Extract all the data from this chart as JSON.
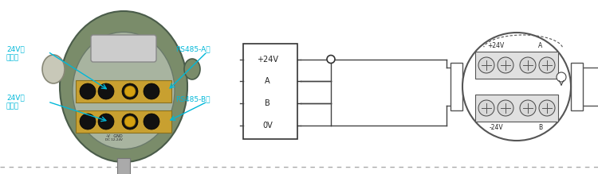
{
  "bg_color": "#ffffff",
  "cyan_color": "#00B8D9",
  "dark": "#333333",
  "gray": "#888888",
  "device_bg": "#7a8c6a",
  "device_inner_bg": "#b0b8a8",
  "terminal_yellow": "#c8a030",
  "terminal_dark": "#222222",
  "box_labels": [
    "+24V",
    "A",
    "B",
    "0V"
  ],
  "label_left_1": "24V电",
  "label_left_1b": "源正极",
  "label_right_1": "RS485-A极",
  "label_left_2": "24V电",
  "label_left_2b": "源负极",
  "label_right_2": "RS485-B极",
  "fm_labels_top": [
    "+24V",
    "A"
  ],
  "fm_labels_bot": [
    "-24V",
    "B"
  ],
  "dashed_color": "#aaaaaa",
  "pipe_color": "#555555",
  "wire_color": "#444444"
}
